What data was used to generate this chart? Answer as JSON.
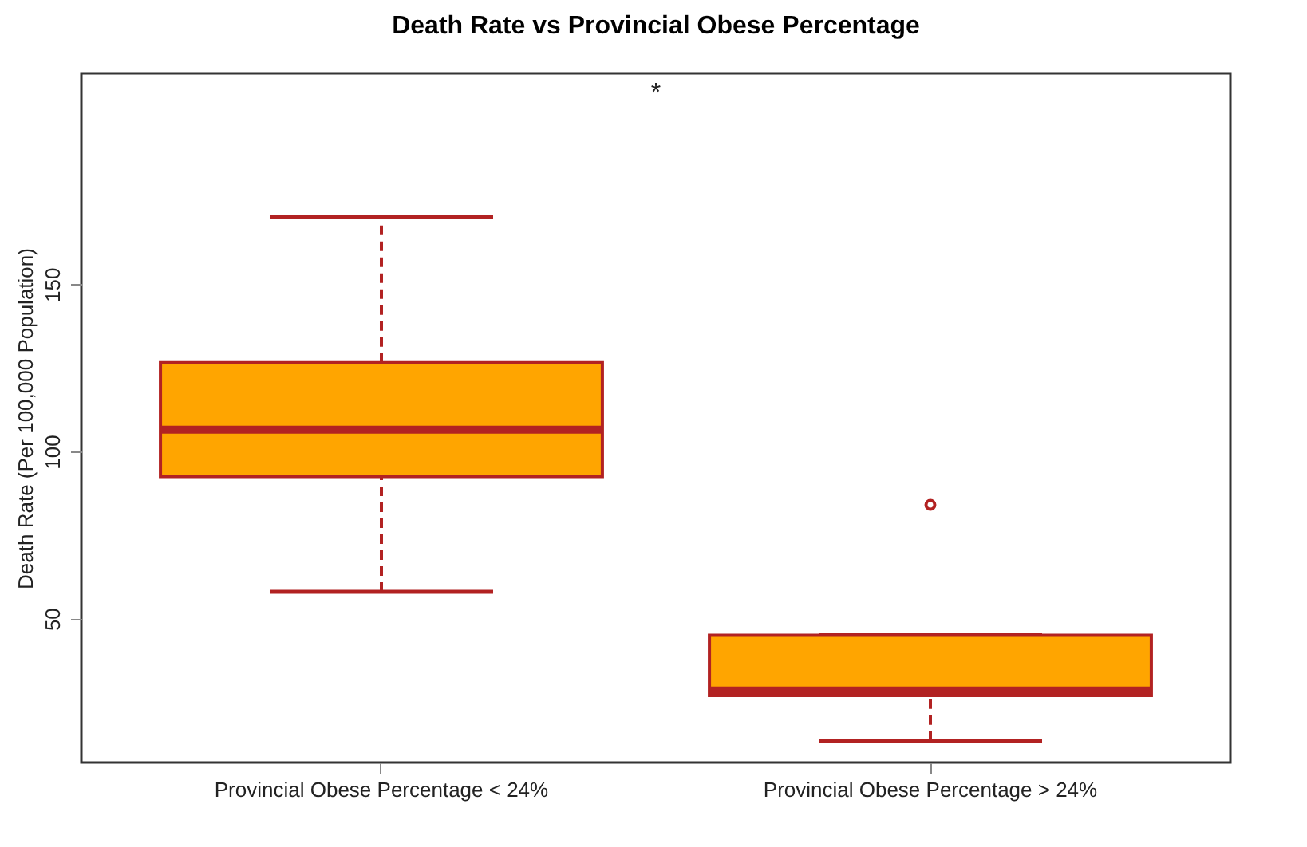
{
  "chart_data": {
    "type": "box",
    "title": "Death Rate vs Provincial Obese Percentage",
    "ylabel": "Death Rate (Per 100,000 Population)",
    "categories": [
      "Provincial Obese Percentage < 24%",
      "Provincial Obese Percentage > 24%"
    ],
    "series": [
      {
        "color": "#ffa500",
        "boxes": [
          {
            "low": 58,
            "q1": 92.5,
            "median": 106.5,
            "q3": 126.5,
            "high": 170
          },
          {
            "low": 13.5,
            "q1": 27,
            "median": 28.5,
            "q3": 45,
            "high": 45,
            "outliers": [
              84
            ]
          }
        ]
      }
    ],
    "ylim": [
      7,
      213
    ],
    "yticks": [
      50,
      100,
      150
    ],
    "grid": false,
    "annotations": [
      "*"
    ]
  }
}
